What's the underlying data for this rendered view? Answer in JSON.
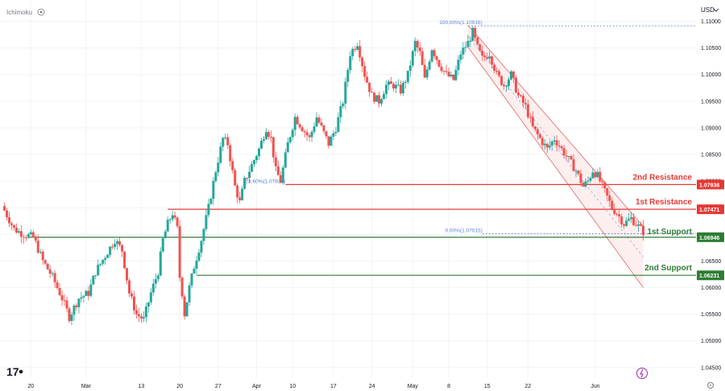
{
  "header": {
    "indicator_label": "Ichimoku",
    "currency_label": "USD"
  },
  "colors": {
    "up": "#26a69a",
    "down": "#ef5350",
    "resistance": "#e53935",
    "support": "#2e7d32",
    "fib": "#5b7fd6",
    "channel": "#e57373",
    "channel_fill": "#fde2e2",
    "grid": "#f0f3fa",
    "axis_text": "#131722"
  },
  "levels": [
    {
      "id": "r2",
      "label": "2nd Resistance",
      "price": 1.07936,
      "tag": "1.07936",
      "kind": "resistance"
    },
    {
      "id": "r1",
      "label": "1st Resistance",
      "price": 1.07471,
      "tag": "1.07471",
      "kind": "resistance"
    },
    {
      "id": "s1",
      "label": "1st Support",
      "price": 1.06946,
      "tag": "1.06946",
      "kind": "support"
    },
    {
      "id": "s2",
      "label": "2nd Support",
      "price": 1.06231,
      "tag": "1.06231",
      "kind": "support"
    }
  ],
  "fib_labels": [
    {
      "text": "100.00%(1.10916)",
      "price": 1.10916
    },
    {
      "text": "23.60%(1.07936)",
      "price": 1.07936
    },
    {
      "text": "0.00%(1.07015)",
      "price": 1.07015
    }
  ],
  "chart_data": {
    "type": "candlestick",
    "symbol_currency": "USD",
    "ylim": [
      1.043,
      1.1125
    ],
    "y_ticks": [
      "1.11000",
      "1.10500",
      "1.10000",
      "1.09500",
      "1.09000",
      "1.08500",
      "1.08000",
      "1.07500",
      "1.07000",
      "1.06500",
      "1.06000",
      "1.05500",
      "1.05000",
      "1.04500"
    ],
    "x_ticks": [
      "20",
      "Mar",
      "13",
      "20",
      "27",
      "Apr",
      "10",
      "17",
      "24",
      "May",
      "8",
      "15",
      "22",
      "Jun"
    ],
    "price_path": [
      [
        0,
        1.0745
      ],
      [
        4,
        1.071
      ],
      [
        8,
        1.07
      ],
      [
        12,
        1.0695
      ],
      [
        16,
        1.065
      ],
      [
        20,
        1.062
      ],
      [
        24,
        1.058
      ],
      [
        27,
        1.0545
      ],
      [
        31,
        1.058
      ],
      [
        35,
        1.059
      ],
      [
        38,
        1.063
      ],
      [
        42,
        1.066
      ],
      [
        46,
        1.069
      ],
      [
        49,
        1.067
      ],
      [
        52,
        1.059
      ],
      [
        55,
        1.055
      ],
      [
        58,
        1.054
      ],
      [
        61,
        1.059
      ],
      [
        64,
        1.063
      ],
      [
        66,
        1.069
      ],
      [
        68,
        1.072
      ],
      [
        70,
        1.074
      ],
      [
        72,
        1.071
      ],
      [
        73,
        1.062
      ],
      [
        74,
        1.059
      ],
      [
        75,
        1.055
      ],
      [
        77,
        1.06
      ],
      [
        79,
        1.064
      ],
      [
        82,
        1.069
      ],
      [
        85,
        1.075
      ],
      [
        88,
        1.082
      ],
      [
        91,
        1.088
      ],
      [
        93,
        1.087
      ],
      [
        96,
        1.079
      ],
      [
        98,
        1.076
      ],
      [
        100,
        1.08
      ],
      [
        103,
        1.083
      ],
      [
        106,
        1.086
      ],
      [
        109,
        1.09
      ],
      [
        111,
        1.088
      ],
      [
        113,
        1.082
      ],
      [
        115,
        1.08
      ],
      [
        118,
        1.087
      ],
      [
        121,
        1.092
      ],
      [
        124,
        1.09
      ],
      [
        127,
        1.088
      ],
      [
        130,
        1.092
      ],
      [
        132,
        1.09
      ],
      [
        135,
        1.087
      ],
      [
        138,
        1.09
      ],
      [
        141,
        1.095
      ],
      [
        144,
        1.104
      ],
      [
        147,
        1.106
      ],
      [
        150,
        1.1
      ],
      [
        153,
        1.096
      ],
      [
        156,
        1.095
      ],
      [
        159,
        1.098
      ],
      [
        162,
        1.098
      ],
      [
        165,
        1.097
      ],
      [
        168,
        1.1
      ],
      [
        171,
        1.106
      ],
      [
        173,
        1.104
      ],
      [
        175,
        1.099
      ],
      [
        178,
        1.105
      ],
      [
        181,
        1.102
      ],
      [
        184,
        1.1
      ],
      [
        187,
        1.099
      ],
      [
        190,
        1.104
      ],
      [
        193,
        1.106
      ],
      [
        195,
        1.108
      ],
      [
        197,
        1.105
      ],
      [
        199,
        1.103
      ],
      [
        202,
        1.104
      ],
      [
        205,
        1.1
      ],
      [
        208,
        1.098
      ],
      [
        211,
        1.1
      ],
      [
        214,
        1.096
      ],
      [
        217,
        1.094
      ],
      [
        220,
        1.09
      ],
      [
        223,
        1.088
      ],
      [
        226,
        1.086
      ],
      [
        229,
        1.088
      ],
      [
        232,
        1.086
      ],
      [
        235,
        1.084
      ],
      [
        238,
        1.082
      ],
      [
        241,
        1.079
      ],
      [
        243,
        1.08
      ],
      [
        245,
        1.082
      ],
      [
        247,
        1.081
      ],
      [
        249,
        1.079
      ],
      [
        251,
        1.077
      ],
      [
        253,
        1.075
      ],
      [
        255,
        1.074
      ],
      [
        258,
        1.072
      ],
      [
        261,
        1.073
      ],
      [
        264,
        1.0715
      ],
      [
        266,
        1.0705
      ]
    ]
  },
  "footer": {
    "logo_text": "17"
  }
}
